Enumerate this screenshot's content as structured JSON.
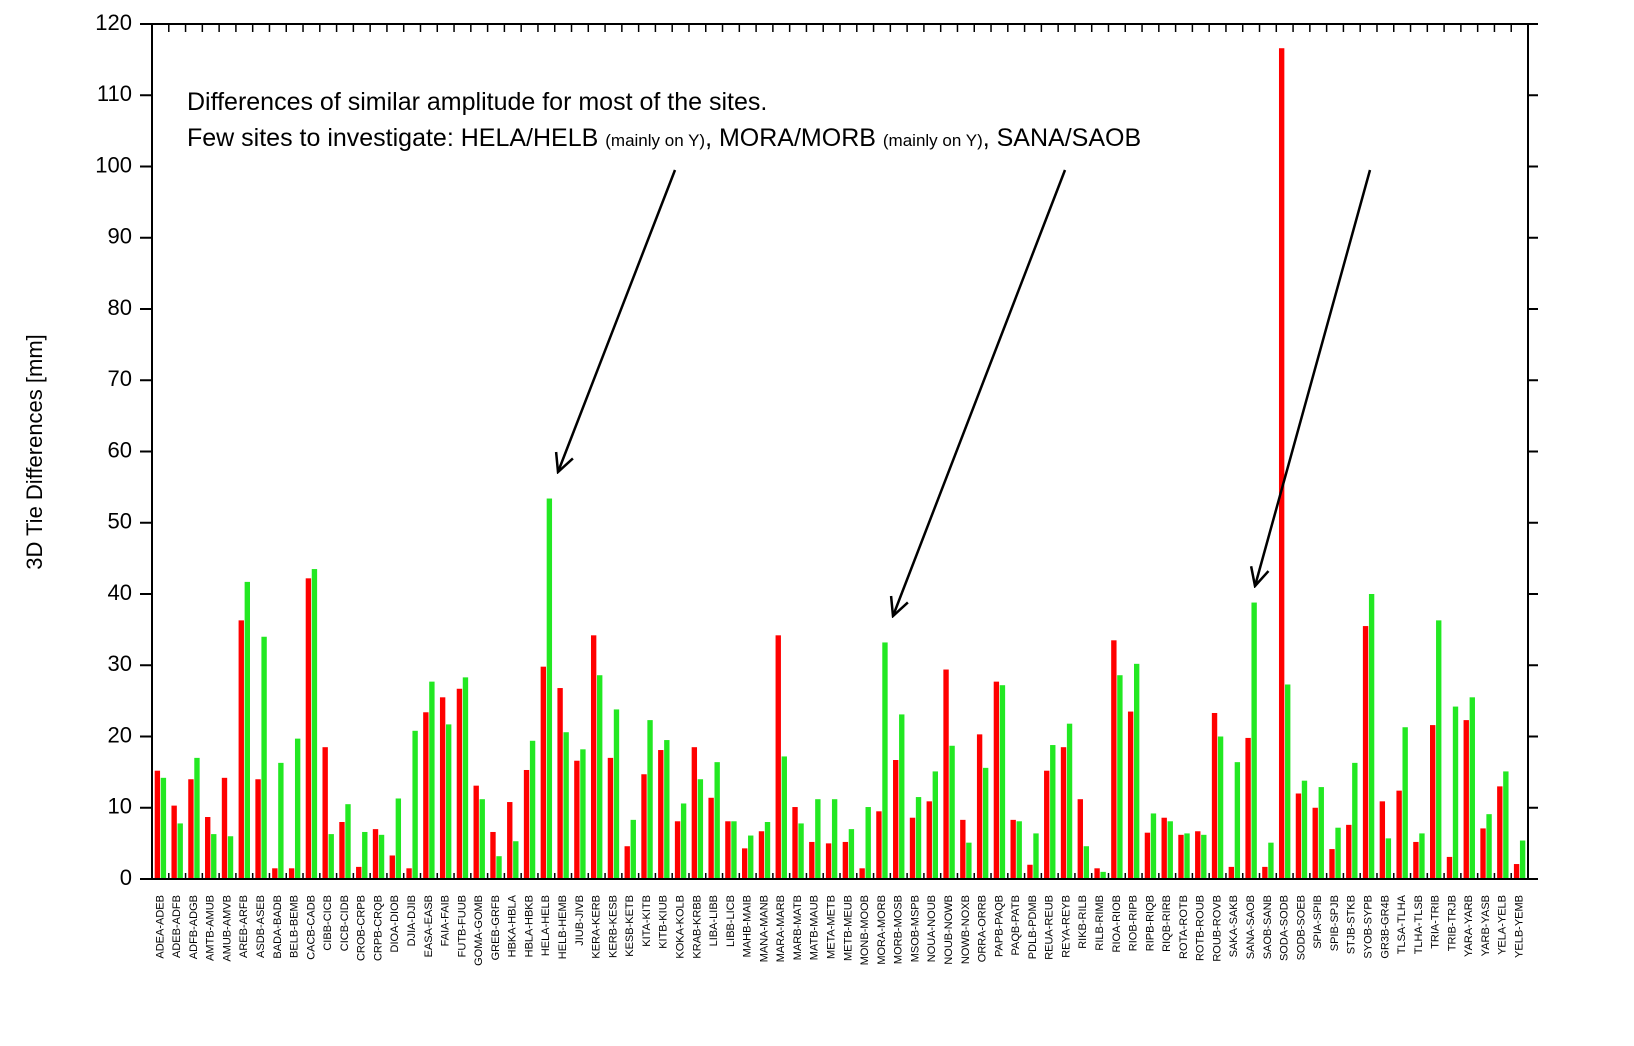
{
  "chart_data": {
    "type": "bar",
    "y_label": "3D Tie Differences [mm]",
    "annotation_line1": "Differences of similar amplitude for most of the sites.",
    "annotation_line2": [
      "Few sites to investigate: HELA/HELB ",
      "(mainly on Y)",
      ", MORA/MORB ",
      "(mainly on Y)",
      ", SANA/SAOB"
    ],
    "ylim": [
      0,
      120
    ],
    "yticks": [
      0,
      10,
      20,
      30,
      40,
      50,
      60,
      70,
      80,
      90,
      100,
      110,
      120
    ],
    "grid": false,
    "categories": [
      "ADEA-ADEB",
      "ADEB-ADFB",
      "ADFB-ADGB",
      "AMTB-AMUB",
      "AMUB-AMVB",
      "AREB-ARFB",
      "ASDB-ASEB",
      "BADA-BADB",
      "BELB-BEMB",
      "CACB-CADB",
      "CIBB-CICB",
      "CICB-CIDB",
      "CROB-CRPB",
      "CRPB-CRQB",
      "DIOA-DIOB",
      "DJIA-DJIB",
      "EASA-EASB",
      "FAIA-FAIB",
      "FUTB-FUUB",
      "GOMA-GOMB",
      "GREB-GRFB",
      "HBKA-HBLA",
      "HBLA-HBKB",
      "HELA-HELB",
      "HELB-HEMB",
      "JIUB-JIVB",
      "KERA-KERB",
      "KERB-KESB",
      "KESB-KETB",
      "KITA-KITB",
      "KITB-KIUB",
      "KOKA-KOLB",
      "KRAB-KRBB",
      "LIBA-LIBB",
      "LIBB-LICB",
      "MAHB-MAIB",
      "MANA-MANB",
      "MARA-MARB",
      "MARB-MATB",
      "MATB-MAUB",
      "META-METB",
      "METB-MEUB",
      "MONB-MOOB",
      "MORA-MORB",
      "MORB-MOSB",
      "MSOB-MSPB",
      "NOUA-NOUB",
      "NOUB-NOWB",
      "NOWB-NOXB",
      "ORRA-ORRB",
      "PAPB-PAQB",
      "PAQB-PATB",
      "PDLB-PDMB",
      "REUA-REUB",
      "REYA-REYB",
      "RIKB-RILB",
      "RILB-RIMB",
      "RIOA-RIOB",
      "RIOB-RIPB",
      "RIPB-RIQB",
      "RIQB-RIRB",
      "ROTA-ROTB",
      "ROTB-ROUB",
      "ROUB-ROVB",
      "SAKA-SAKB",
      "SANA-SAOB",
      "SAOB-SANB",
      "SODA-SODB",
      "SODB-SOEB",
      "SPIA-SPIB",
      "SPIB-SPJB",
      "STJB-STKB",
      "SYOB-SYPB",
      "GR3B-GR4B",
      "TLSA-TLHA",
      "TLHA-TLSB",
      "TRIA-TRIB",
      "TRIB-TRJB",
      "YARA-YARB",
      "YARB-YASB",
      "YELA-YELB",
      "YELB-YEMB"
    ],
    "series": [
      {
        "color": "#ff0000",
        "values": [
          15.2,
          10.3,
          14,
          8.7,
          14.2,
          36.3,
          14,
          1.5,
          1.5,
          42.2,
          18.5,
          8,
          1.7,
          7,
          3.3,
          1.5,
          23.4,
          25.5,
          26.7,
          13.1,
          6.6,
          10.8,
          15.3,
          29.8,
          26.8,
          16.6,
          34.2,
          17,
          4.6,
          14.7,
          18.1,
          8.1,
          18.5,
          11.4,
          8.1,
          4.3,
          6.7,
          34.2,
          10.1,
          5.2,
          5,
          5.2,
          1.5,
          9.5,
          16.7,
          8.6,
          10.9,
          29.4,
          8.3,
          20.3,
          27.7,
          8.3,
          2,
          15.2,
          18.5,
          11.2,
          1.5,
          33.5,
          23.5,
          6.5,
          8.6,
          6.2,
          6.7,
          23.3,
          1.7,
          19.8,
          1.7,
          116.6,
          12,
          10,
          4.2,
          7.6,
          35.5,
          10.9,
          12.4,
          5.2,
          21.6,
          3.1,
          22.3,
          7.1,
          13,
          2.1
        ]
      },
      {
        "color": "#22e822",
        "values": [
          14.2,
          7.8,
          17,
          6.3,
          6,
          41.7,
          34,
          16.3,
          19.7,
          43.5,
          6.3,
          10.5,
          6.6,
          6.2,
          11.3,
          20.8,
          27.7,
          21.7,
          28.3,
          11.2,
          3.2,
          5.3,
          19.4,
          53.4,
          20.6,
          18.2,
          28.6,
          23.8,
          8.3,
          22.3,
          19.5,
          10.6,
          14,
          16.4,
          8.1,
          6.1,
          8,
          17.2,
          7.8,
          11.2,
          11.2,
          7,
          10.1,
          33.2,
          23.1,
          11.5,
          15.1,
          18.7,
          5.1,
          15.6,
          27.2,
          8.1,
          6.4,
          18.8,
          21.8,
          4.6,
          1,
          28.6,
          30.2,
          9.2,
          8.1,
          6.4,
          6.2,
          20,
          16.4,
          38.8,
          5.1,
          27.3,
          13.8,
          12.9,
          7.2,
          16.3,
          40,
          5.7,
          21.3,
          6.4,
          36.3,
          24.2,
          25.5,
          9.1,
          15.1,
          5.4
        ]
      }
    ]
  }
}
